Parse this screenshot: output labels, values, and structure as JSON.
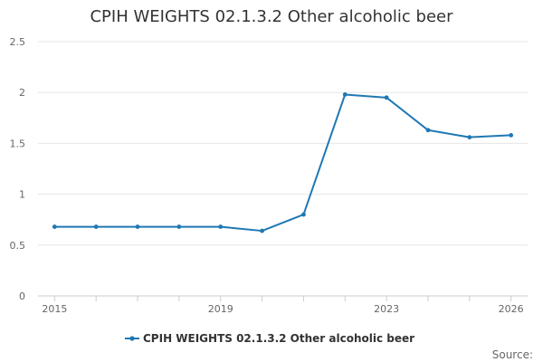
{
  "chart_data": {
    "type": "line",
    "title": "CPIH WEIGHTS 02.1.3.2 Other alcoholic beer",
    "xlabel": "",
    "ylabel": "",
    "ylim": [
      0,
      2.5
    ],
    "xlim": [
      2014.6,
      2026.4
    ],
    "yticks": [
      "0",
      "0.5",
      "1",
      "1.5",
      "2",
      "2.5"
    ],
    "xticks": [
      "2015",
      "2019",
      "2023",
      "2026"
    ],
    "grid": true,
    "legend": "bottom",
    "series": [
      {
        "name": "CPIH WEIGHTS 02.1.3.2 Other alcoholic beer",
        "color": "#1f78b4",
        "x": [
          2015,
          2016,
          2017,
          2018,
          2019,
          2020,
          2021,
          2022,
          2023,
          2024,
          2025,
          2026
        ],
        "y": [
          0.68,
          0.68,
          0.68,
          0.68,
          0.68,
          0.64,
          0.8,
          1.98,
          1.95,
          1.63,
          1.56,
          1.58
        ]
      }
    ],
    "source_label": "Source:"
  }
}
